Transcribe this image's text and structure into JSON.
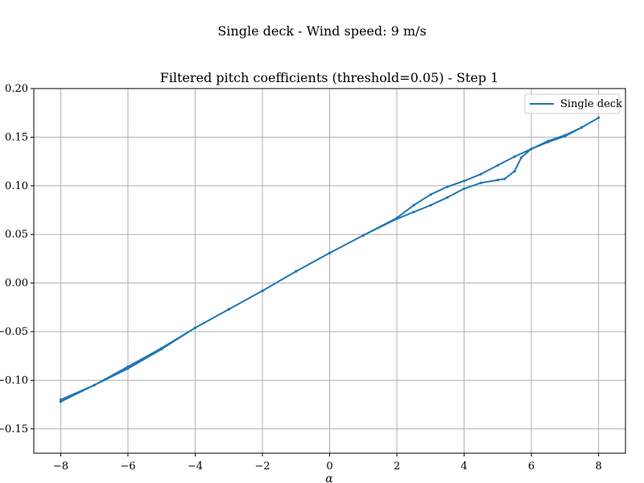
{
  "chart_data": {
    "type": "line",
    "suptitle": "Single deck - Wind speed: 9 m/s",
    "title": "Filtered pitch coefficients (threshold=0.05) - Step 1",
    "xlabel": "α",
    "ylabel": "",
    "xlim": [
      -8.8,
      8.8
    ],
    "ylim": [
      -0.175,
      0.2
    ],
    "xticks": [
      -8,
      -6,
      -4,
      -2,
      0,
      2,
      4,
      6,
      8
    ],
    "xtick_labels": [
      "−8",
      "−6",
      "−4",
      "−2",
      "0",
      "2",
      "4",
      "6",
      "8"
    ],
    "yticks": [
      -0.15,
      -0.1,
      -0.05,
      0.0,
      0.05,
      0.1,
      0.15,
      0.2
    ],
    "ytick_labels": [
      "−0.15",
      "−0.10",
      "−0.05",
      "0.00",
      "0.05",
      "0.10",
      "0.15",
      "0.20"
    ],
    "grid": true,
    "legend": "top-right",
    "colors": {
      "series": "#1f77b4",
      "grid": "#b0b0b0"
    },
    "series": [
      {
        "name": "Single deck",
        "x": [
          -8,
          -7,
          -6,
          -5,
          -4,
          -3,
          -2,
          -1,
          0,
          1,
          2,
          2.5,
          3,
          3.5,
          4,
          4.5,
          5,
          5.5,
          6,
          6.5,
          7,
          7.5,
          8,
          7.5,
          7,
          6.5,
          6,
          5.7,
          5.5,
          5.2,
          5,
          4.5,
          4,
          3.5,
          3,
          2.5,
          2,
          1,
          0,
          -1,
          -2,
          -3,
          -4,
          -5,
          -6,
          -7,
          -8
        ],
        "y": [
          -0.122,
          -0.105,
          -0.088,
          -0.068,
          -0.046,
          -0.027,
          -0.008,
          0.012,
          0.031,
          0.049,
          0.067,
          0.08,
          0.091,
          0.099,
          0.105,
          0.112,
          0.121,
          0.13,
          0.138,
          0.146,
          0.152,
          0.16,
          0.17,
          0.16,
          0.151,
          0.145,
          0.138,
          0.129,
          0.115,
          0.107,
          0.106,
          0.103,
          0.097,
          0.088,
          0.08,
          0.073,
          0.066,
          0.049,
          0.031,
          0.012,
          -0.008,
          -0.027,
          -0.046,
          -0.067,
          -0.086,
          -0.105,
          -0.12
        ]
      }
    ]
  }
}
